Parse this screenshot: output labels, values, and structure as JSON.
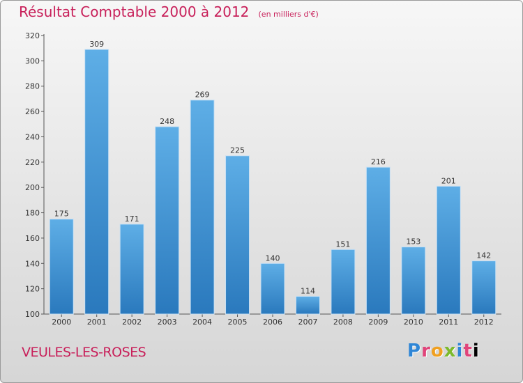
{
  "header": {
    "title": "Résultat Comptable 2000 à 2012",
    "subtitle": "(en milliers d'€)"
  },
  "footer": {
    "commune": "VEULES-LES-ROSES",
    "logo_text": [
      "P",
      "r",
      "o",
      "x",
      "i",
      "t",
      "i"
    ]
  },
  "colors": {
    "title": "#c8205a",
    "bar_top": "#5eaee6",
    "bar_bottom": "#2a79bd"
  },
  "chart_data": {
    "type": "bar",
    "title": "Résultat Comptable 2000 à 2012",
    "subtitle": "(en milliers d'€)",
    "xlabel": "",
    "ylabel": "",
    "categories": [
      "2000",
      "2001",
      "2002",
      "2003",
      "2004",
      "2005",
      "2006",
      "2007",
      "2008",
      "2009",
      "2010",
      "2011",
      "2012"
    ],
    "values": [
      175,
      309,
      171,
      248,
      269,
      225,
      140,
      114,
      151,
      216,
      153,
      201,
      142
    ],
    "ylim": [
      100,
      320
    ],
    "yticks": [
      100,
      120,
      140,
      160,
      180,
      200,
      220,
      240,
      260,
      280,
      300,
      320
    ],
    "grid": false,
    "legend": "none"
  }
}
